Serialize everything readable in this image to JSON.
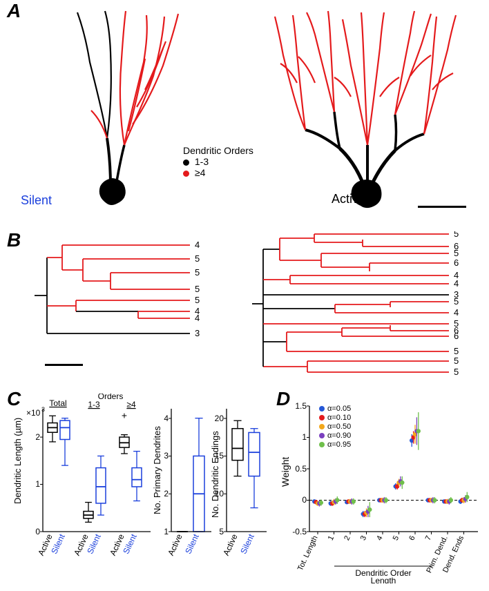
{
  "panel_labels": {
    "A": "A",
    "B": "B",
    "C": "C",
    "D": "D"
  },
  "colors": {
    "low_order": "#000000",
    "high_order": "#e41a1c",
    "silent_text": "#1a3fdc",
    "active_text": "#000000",
    "axis": "#000000",
    "outlier": "#000000"
  },
  "panelA": {
    "silent_label": "Silent",
    "active_label": "Active",
    "legend_title": "Dendritic Orders",
    "legend_items": [
      {
        "label": "1-3",
        "color": "#000000"
      },
      {
        "label": "≥4",
        "color": "#e41a1c"
      }
    ]
  },
  "panelB": {
    "silent_terminal_orders": [
      "4",
      "5",
      "5",
      "5",
      "5",
      "4",
      "4",
      "3"
    ],
    "active_terminal_orders": [
      "5",
      "6",
      "5",
      "6",
      "4",
      "4",
      "3",
      "5",
      "4",
      "5",
      "6",
      "6",
      "5",
      "5",
      "5"
    ]
  },
  "panelC": {
    "y1_label": "Dendritic Length (µm)",
    "y1_mult": "×10",
    "y1_sup": "3",
    "y2_label": "No. Primary Dendrites",
    "y3_label": "No. Dendritic Endings",
    "group_labels": {
      "total": "Total",
      "orders": "Orders",
      "g13": "1-3",
      "g4p": "≥4"
    },
    "x_pair_labels": {
      "active": "Active",
      "silent": "Silent"
    },
    "y1_ticks": [
      0,
      1,
      2
    ],
    "y2_ticks": [
      1,
      2,
      3,
      4
    ],
    "y3_ticks": [
      5,
      10,
      15,
      20
    ],
    "boxes_y1": [
      {
        "group": "total",
        "cond": "active",
        "min": 1900,
        "q1": 2100,
        "med": 2200,
        "q3": 2300,
        "max": 2450,
        "color": "#000000"
      },
      {
        "group": "total",
        "cond": "silent",
        "min": 1400,
        "q1": 1950,
        "med": 2200,
        "q3": 2350,
        "max": 2400,
        "color": "#1a3fdc"
      },
      {
        "group": "g13",
        "cond": "active",
        "min": 200,
        "q1": 280,
        "med": 350,
        "q3": 430,
        "max": 620,
        "color": "#000000"
      },
      {
        "group": "g13",
        "cond": "silent",
        "min": 350,
        "q1": 600,
        "med": 950,
        "q3": 1350,
        "max": 1600,
        "color": "#1a3fdc"
      },
      {
        "group": "g4p",
        "cond": "active",
        "min": 1650,
        "q1": 1780,
        "med": 1880,
        "q3": 2000,
        "max": 2050,
        "outlier": 2450,
        "color": "#000000"
      },
      {
        "group": "g4p",
        "cond": "silent",
        "min": 650,
        "q1": 950,
        "med": 1100,
        "q3": 1350,
        "max": 1700,
        "color": "#1a3fdc"
      }
    ],
    "boxes_y2": [
      {
        "cond": "active",
        "min": 1,
        "q1": 1,
        "med": 1,
        "q3": 1,
        "max": 1,
        "color": "#000000"
      },
      {
        "cond": "silent",
        "min": 1,
        "q1": 1,
        "med": 2,
        "q3": 3,
        "max": 4,
        "color": "#1a3fdc"
      }
    ],
    "boxes_y3": [
      {
        "cond": "active",
        "min": 12,
        "q1": 14,
        "med": 15.5,
        "q3": 18,
        "max": 19,
        "color": "#000000"
      },
      {
        "cond": "silent",
        "min": 8,
        "q1": 12,
        "med": 15,
        "q3": 17.5,
        "max": 18,
        "color": "#1a3fdc"
      }
    ]
  },
  "panelD": {
    "ylabel": "Weight",
    "y_ticks": [
      -0.5,
      0,
      0.5,
      1,
      1.5
    ],
    "x_categories": [
      "Tot. Length",
      "1",
      "2",
      "3",
      "4",
      "5",
      "6",
      "7",
      "Prim. Dend.",
      "Dend. Ends"
    ],
    "group_span_label": "Dendritic Order Length",
    "legend_title_prefix": "α=",
    "series": [
      {
        "alpha": "0.05",
        "color": "#2557d6"
      },
      {
        "alpha": "0.10",
        "color": "#e41a1c"
      },
      {
        "alpha": "0.50",
        "color": "#f2a71b"
      },
      {
        "alpha": "0.90",
        "color": "#7a3fbf"
      },
      {
        "alpha": "0.95",
        "color": "#6fbf4b"
      }
    ],
    "points": {
      "Tot. Length": {
        "vals": [
          -0.02,
          -0.03,
          -0.05,
          -0.05,
          -0.04
        ],
        "err": [
          0.03,
          0.03,
          0.04,
          0.05,
          0.05
        ]
      },
      "1": {
        "vals": [
          -0.05,
          -0.05,
          -0.03,
          -0.02,
          0.0
        ],
        "err": [
          0.04,
          0.04,
          0.05,
          0.05,
          0.06
        ]
      },
      "2": {
        "vals": [
          -0.03,
          -0.02,
          -0.02,
          -0.02,
          -0.02
        ],
        "err": [
          0.03,
          0.03,
          0.04,
          0.05,
          0.05
        ]
      },
      "3": {
        "vals": [
          -0.22,
          -0.22,
          -0.2,
          -0.18,
          -0.15
        ],
        "err": [
          0.05,
          0.05,
          0.07,
          0.09,
          0.12
        ]
      },
      "4": {
        "vals": [
          0.0,
          0.0,
          0.0,
          0.0,
          0.0
        ],
        "err": [
          0.03,
          0.03,
          0.04,
          0.05,
          0.05
        ]
      },
      "5": {
        "vals": [
          0.22,
          0.22,
          0.28,
          0.3,
          0.28
        ],
        "err": [
          0.05,
          0.05,
          0.06,
          0.08,
          0.1
        ]
      },
      "6": {
        "vals": [
          0.95,
          1.0,
          1.05,
          1.1,
          1.1
        ],
        "err": [
          0.1,
          0.1,
          0.15,
          0.22,
          0.3
        ]
      },
      "7": {
        "vals": [
          0.0,
          0.0,
          0.0,
          0.0,
          0.0
        ],
        "err": [
          0.03,
          0.03,
          0.04,
          0.05,
          0.05
        ]
      },
      "Prim. Dend.": {
        "vals": [
          -0.02,
          -0.02,
          -0.02,
          -0.02,
          0.0
        ],
        "err": [
          0.03,
          0.03,
          0.04,
          0.05,
          0.05
        ]
      },
      "Dend. Ends": {
        "vals": [
          -0.02,
          0.0,
          0.0,
          0.02,
          0.05
        ],
        "err": [
          0.04,
          0.04,
          0.05,
          0.06,
          0.08
        ]
      }
    }
  }
}
